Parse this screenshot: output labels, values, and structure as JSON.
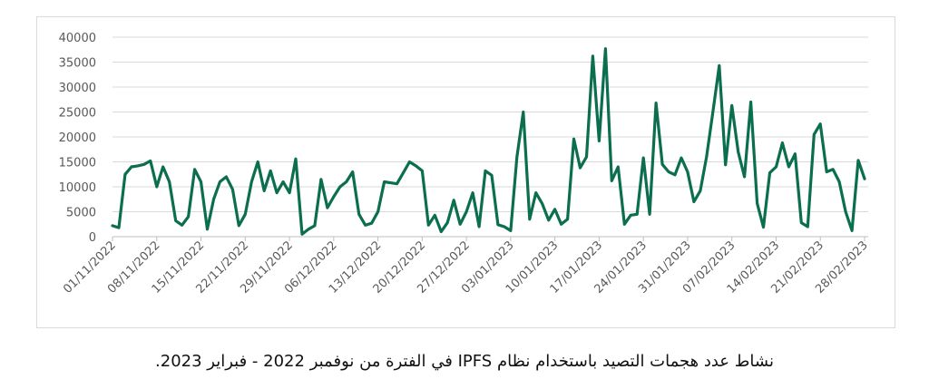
{
  "caption": "نشاط عدد هجمات التصيد باستخدام نظام IPFS في الفترة من نوفمبر 2022 - فبراير 2023.",
  "chart_data": {
    "type": "line",
    "title": "",
    "xlabel": "",
    "ylabel": "",
    "ylim": [
      0,
      40000
    ],
    "yticks": [
      0,
      5000,
      10000,
      15000,
      20000,
      25000,
      30000,
      35000,
      40000
    ],
    "grid": "horizontal",
    "legend": "none",
    "line_color": "#0b6e4f",
    "x_start": "2022-11-01",
    "x_end": "2023-02-28",
    "x_tick_labels": [
      "01/11/2022",
      "08/11/2022",
      "15/11/2022",
      "22/11/2022",
      "29/11/2022",
      "06/12/2022",
      "13/12/2022",
      "20/12/2022",
      "27/12/2022",
      "03/01/2023",
      "10/01/2023",
      "17/01/2023",
      "24/01/2023",
      "31/01/2023",
      "07/02/2023",
      "14/02/2023",
      "21/02/2023",
      "28/02/2023"
    ],
    "values": [
      2200,
      1800,
      12500,
      14000,
      14200,
      14500,
      15200,
      10000,
      14000,
      11000,
      3200,
      2300,
      4000,
      13500,
      11000,
      1500,
      7500,
      11000,
      12000,
      9500,
      2200,
      4500,
      11000,
      15000,
      9200,
      13200,
      8800,
      11000,
      8800,
      15600,
      500,
      1500,
      2200,
      11500,
      5800,
      8000,
      10000,
      11000,
      13000,
      4500,
      2300,
      2700,
      5000,
      11000,
      10800,
      10600,
      12800,
      15000,
      14200,
      13200,
      2300,
      4300,
      1000,
      2800,
      7300,
      2500,
      5000,
      8800,
      2000,
      13200,
      12300,
      2400,
      2000,
      1200,
      16000,
      25000,
      3500,
      8800,
      6600,
      3300,
      5500,
      2500,
      3500,
      19600,
      13800,
      16000,
      36200,
      19200,
      37700,
      11200,
      14000,
      2500,
      4300,
      4500,
      15800,
      4500,
      26800,
      14500,
      13000,
      12400,
      15800,
      13000,
      7000,
      9200,
      16000,
      25000,
      34300,
      14400,
      26300,
      17000,
      12000,
      27000,
      6700,
      1900,
      12800,
      14000,
      18800,
      14000,
      16600,
      2800,
      2000,
      20500,
      22600,
      13000,
      13500,
      11000,
      5000,
      1200,
      15300,
      11600
    ]
  }
}
